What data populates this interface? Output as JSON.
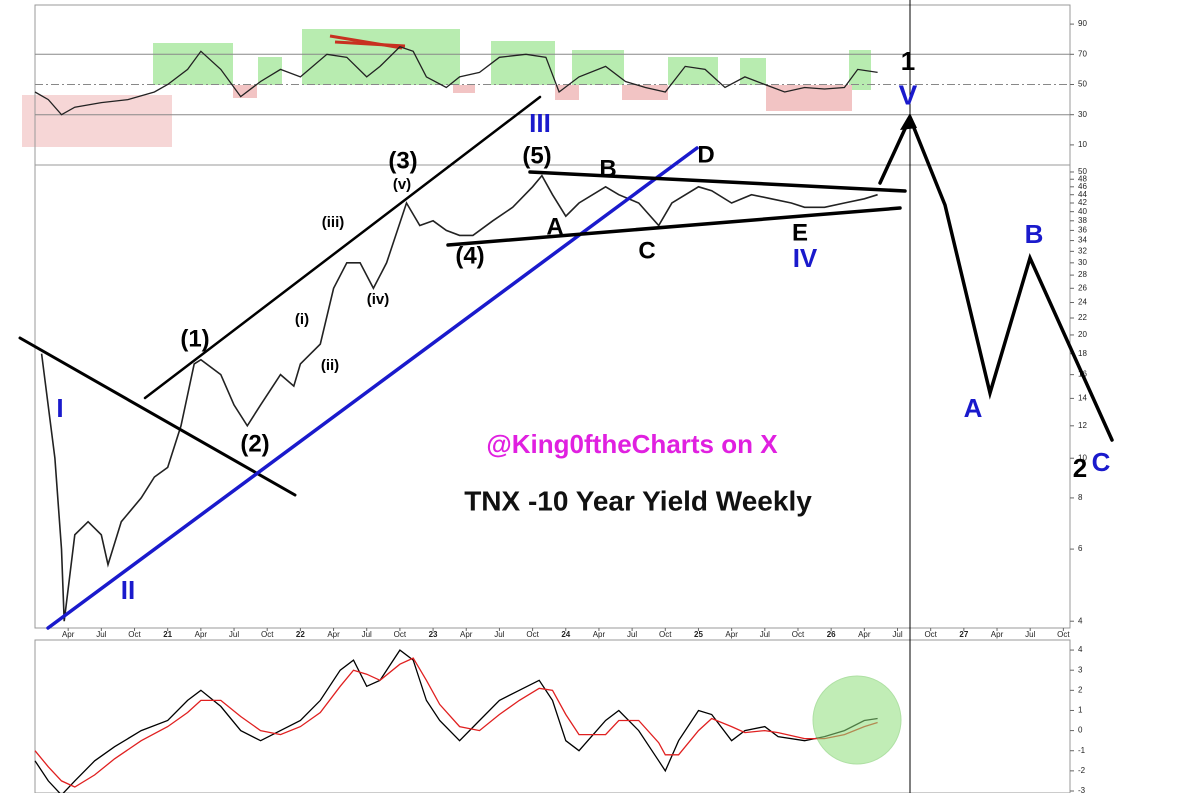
{
  "chart_data": [
    {
      "type": "line",
      "color": "#222222",
      "xlim": [
        2020.0,
        2027.8
      ],
      "ylim": [
        0,
        100
      ],
      "yticks": [
        10,
        30,
        50,
        70,
        90
      ],
      "levels": [
        30,
        50,
        70
      ],
      "x": [
        2020.0,
        2020.1,
        2020.2,
        2020.3,
        2020.5,
        2020.7,
        2020.9,
        2021.0,
        2021.15,
        2021.25,
        2021.4,
        2021.55,
        2021.7,
        2021.85,
        2022.0,
        2022.2,
        2022.35,
        2022.5,
        2022.6,
        2022.75,
        2022.85,
        2022.95,
        2023.1,
        2023.2,
        2023.35,
        2023.5,
        2023.7,
        2023.85,
        2023.95,
        2024.1,
        2024.3,
        2024.45,
        2024.6,
        2024.75,
        2024.9,
        2025.05,
        2025.2,
        2025.35,
        2025.5,
        2025.65,
        2025.8,
        2025.95,
        2026.1,
        2026.2,
        2026.35
      ],
      "values": [
        45,
        40,
        30,
        35,
        38,
        40,
        45,
        50,
        60,
        72,
        60,
        42,
        52,
        60,
        55,
        70,
        68,
        55,
        62,
        75,
        72,
        55,
        48,
        55,
        58,
        68,
        70,
        68,
        45,
        55,
        62,
        52,
        48,
        45,
        62,
        60,
        48,
        55,
        50,
        45,
        48,
        47,
        48,
        60,
        58
      ]
    },
    {
      "type": "line",
      "log_scale": true,
      "title": "TNX -10 Year Yield Weekly",
      "credit": "@King0ftheCharts on X",
      "color": "#222222",
      "xlim": [
        2020.0,
        2027.8
      ],
      "ylim": [
        3.85,
        52
      ],
      "yticks": [
        4,
        6,
        8,
        10,
        12,
        14,
        16,
        18,
        20,
        22,
        24,
        26,
        28,
        30,
        32,
        34,
        36,
        38,
        40,
        42,
        44,
        46,
        48,
        50
      ],
      "xticks": [
        {
          "value": 2020.25,
          "label": "Apr"
        },
        {
          "value": 2020.5,
          "label": "Jul"
        },
        {
          "value": 2020.75,
          "label": "Oct"
        },
        {
          "value": 2021,
          "label": "21"
        },
        {
          "value": 2021.25,
          "label": "Apr"
        },
        {
          "value": 2021.5,
          "label": "Jul"
        },
        {
          "value": 2021.75,
          "label": "Oct"
        },
        {
          "value": 2022,
          "label": "22"
        },
        {
          "value": 2022.25,
          "label": "Apr"
        },
        {
          "value": 2022.5,
          "label": "Jul"
        },
        {
          "value": 2022.75,
          "label": "Oct"
        },
        {
          "value": 2023,
          "label": "23"
        },
        {
          "value": 2023.25,
          "label": "Apr"
        },
        {
          "value": 2023.5,
          "label": "Jul"
        },
        {
          "value": 2023.75,
          "label": "Oct"
        },
        {
          "value": 2024,
          "label": "24"
        },
        {
          "value": 2024.25,
          "label": "Apr"
        },
        {
          "value": 2024.5,
          "label": "Jul"
        },
        {
          "value": 2024.75,
          "label": "Oct"
        },
        {
          "value": 2025,
          "label": "25"
        },
        {
          "value": 2025.25,
          "label": "Apr"
        },
        {
          "value": 2025.5,
          "label": "Jul"
        },
        {
          "value": 2025.75,
          "label": "Oct"
        },
        {
          "value": 2026,
          "label": "26"
        },
        {
          "value": 2026.25,
          "label": "Apr"
        },
        {
          "value": 2026.5,
          "label": "Jul"
        },
        {
          "value": 2026.75,
          "label": "Oct"
        },
        {
          "value": 2027,
          "label": "27"
        },
        {
          "value": 2027.25,
          "label": "Apr"
        },
        {
          "value": 2027.5,
          "label": "Jul"
        },
        {
          "value": 2027.75,
          "label": "Oct"
        }
      ],
      "x": [
        2020.05,
        2020.15,
        2020.2,
        2020.22,
        2020.3,
        2020.4,
        2020.5,
        2020.55,
        2020.65,
        2020.8,
        2020.9,
        2021.0,
        2021.1,
        2021.2,
        2021.25,
        2021.4,
        2021.5,
        2021.6,
        2021.7,
        2021.85,
        2021.95,
        2022.0,
        2022.15,
        2022.25,
        2022.35,
        2022.45,
        2022.55,
        2022.65,
        2022.8,
        2022.9,
        2023.0,
        2023.1,
        2023.2,
        2023.3,
        2023.45,
        2023.6,
        2023.75,
        2023.82,
        2023.9,
        2024.0,
        2024.1,
        2024.3,
        2024.4,
        2024.55,
        2024.7,
        2024.8,
        2025.0,
        2025.1,
        2025.25,
        2025.4,
        2025.55,
        2025.7,
        2025.8,
        2025.95,
        2026.1,
        2026.25,
        2026.35
      ],
      "values": [
        18,
        10,
        6,
        4,
        6.5,
        7,
        6.5,
        5.5,
        7,
        8,
        9,
        9.5,
        12,
        17,
        17.4,
        16,
        13.5,
        12,
        13.5,
        16,
        15,
        17,
        19,
        26,
        30,
        30,
        26,
        30,
        42,
        37,
        38,
        36,
        35,
        35,
        38,
        41,
        46,
        49,
        44,
        39,
        42,
        46,
        44,
        42,
        37,
        42,
        46,
        45,
        42,
        44,
        43,
        42,
        41,
        41,
        42,
        43,
        44
      ],
      "annotations": [
        "(1)",
        "(2)",
        "(3)",
        "(4)",
        "(5)",
        "(i)",
        "(ii)",
        "(iii)",
        "(iv)",
        "(v)",
        "I",
        "II",
        "III",
        "IV",
        "V",
        "1",
        "A",
        "B",
        "C",
        "D",
        "E",
        "A",
        "B",
        "C",
        "2"
      ]
    },
    {
      "type": "line",
      "xlim": [
        2020.0,
        2027.8
      ],
      "ylim": [
        -3.1,
        4.5
      ],
      "yticks": [
        -3,
        -2,
        -1,
        0,
        1,
        2,
        3,
        4
      ],
      "x": [
        2020.0,
        2020.1,
        2020.2,
        2020.3,
        2020.45,
        2020.6,
        2020.8,
        2021.0,
        2021.15,
        2021.25,
        2021.4,
        2021.55,
        2021.7,
        2021.85,
        2022.0,
        2022.15,
        2022.3,
        2022.4,
        2022.5,
        2022.6,
        2022.75,
        2022.85,
        2022.95,
        2023.05,
        2023.2,
        2023.35,
        2023.5,
        2023.65,
        2023.8,
        2023.9,
        2024.0,
        2024.1,
        2024.3,
        2024.4,
        2024.55,
        2024.7,
        2024.75,
        2024.85,
        2025.0,
        2025.1,
        2025.25,
        2025.35,
        2025.5,
        2025.6,
        2025.8,
        2025.95,
        2026.1,
        2026.25,
        2026.35
      ],
      "series": [
        {
          "color": "#000000",
          "values": [
            -1.5,
            -2.5,
            -3.2,
            -2.5,
            -1.5,
            -0.8,
            0,
            0.5,
            1.5,
            2.0,
            1.2,
            0,
            -0.5,
            0,
            0.5,
            1.5,
            3.0,
            3.5,
            2.2,
            2.5,
            4.0,
            3.5,
            1.5,
            0.5,
            -0.5,
            0.5,
            1.5,
            2.0,
            2.5,
            1.5,
            -0.5,
            -1.0,
            0.5,
            1.0,
            0,
            -1.5,
            -2.0,
            -0.5,
            1.0,
            0.8,
            -0.5,
            0,
            0.2,
            -0.3,
            -0.5,
            -0.3,
            0,
            0.5,
            0.6
          ]
        },
        {
          "color": "#e02020",
          "values": [
            -1.0,
            -1.8,
            -2.5,
            -2.8,
            -2.2,
            -1.4,
            -0.5,
            0.2,
            0.9,
            1.5,
            1.5,
            0.7,
            0,
            -0.2,
            0.2,
            0.9,
            2.2,
            3.0,
            2.8,
            2.5,
            3.3,
            3.6,
            2.5,
            1.3,
            0.2,
            0,
            0.8,
            1.5,
            2.1,
            2.0,
            0.8,
            -0.2,
            -0.2,
            0.5,
            0.5,
            -0.6,
            -1.2,
            -1.2,
            0,
            0.6,
            0.2,
            -0.1,
            0,
            -0.1,
            -0.4,
            -0.4,
            -0.2,
            0.2,
            0.4
          ]
        }
      ]
    }
  ]
}
